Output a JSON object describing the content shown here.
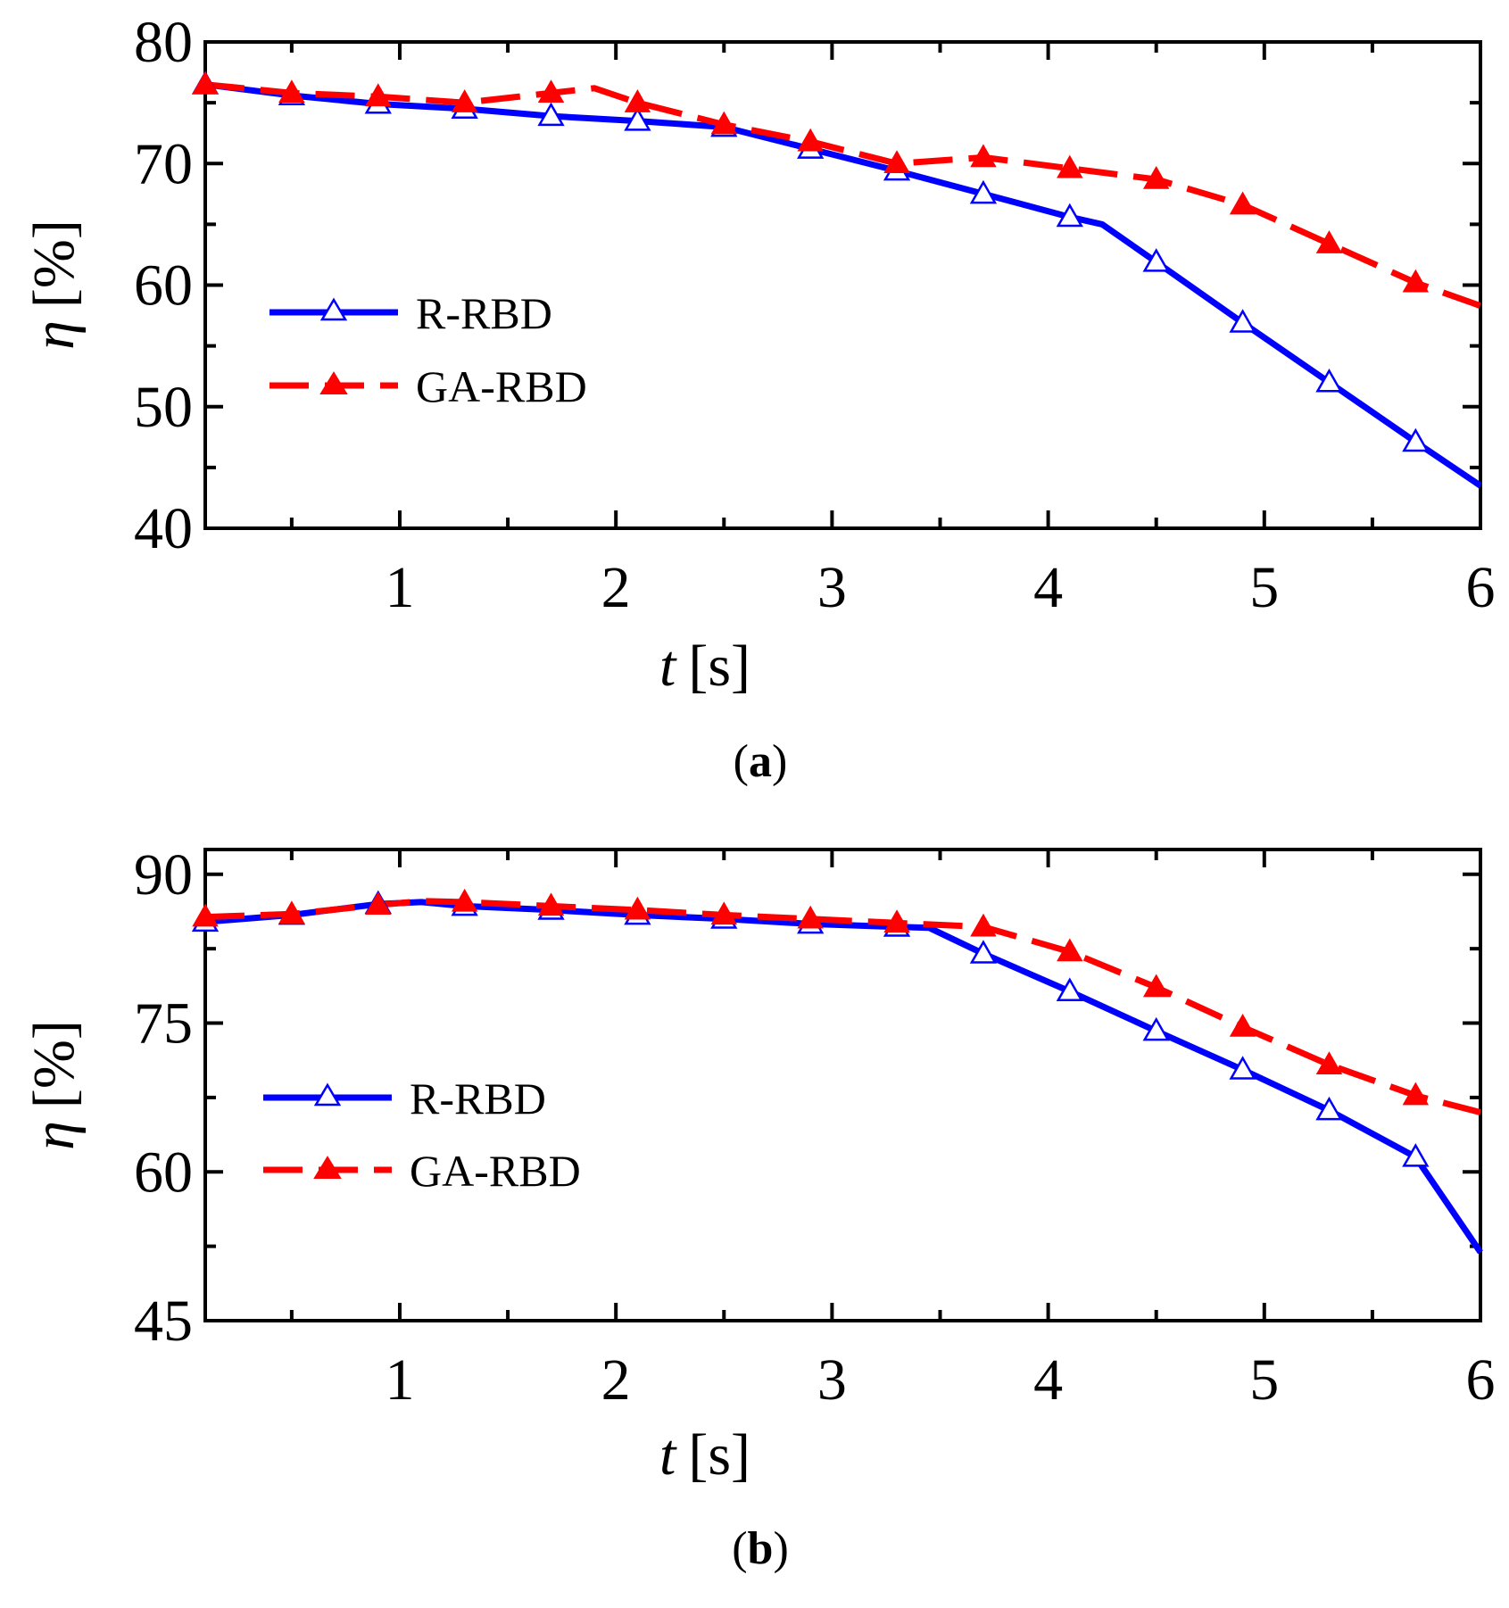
{
  "chart_data": [
    {
      "type": "line",
      "panel_label": "a",
      "xlabel_var": "t",
      "xlabel_unit": "[s]",
      "ylabel_var": "η",
      "ylabel_unit": "[%]",
      "xlim": [
        0.1,
        6
      ],
      "ylim": [
        40,
        80
      ],
      "xticks": [
        1,
        2,
        3,
        4,
        5,
        6
      ],
      "yticks": [
        40,
        50,
        60,
        70,
        80
      ],
      "grid": false,
      "legend_position": "center-left",
      "series": [
        {
          "name": "R-RBD",
          "color": "#0000ff",
          "style": "solid",
          "marker": "open-triangle",
          "x": [
            0.1,
            0.5,
            0.9,
            1.3,
            1.7,
            2.1,
            2.5,
            2.9,
            3.3,
            3.7,
            4.1,
            4.25,
            4.5,
            4.9,
            5.3,
            5.7,
            6.0
          ],
          "y": [
            76.5,
            75.6,
            74.9,
            74.5,
            73.9,
            73.5,
            73.0,
            71.2,
            69.4,
            67.5,
            65.6,
            65.0,
            61.9,
            56.9,
            52.0,
            47.1,
            43.5
          ]
        },
        {
          "name": "GA-RBD",
          "color": "#ff0000",
          "style": "dashed",
          "marker": "filled-triangle",
          "x": [
            0.1,
            0.5,
            0.9,
            1.3,
            1.7,
            1.9,
            2.1,
            2.5,
            2.9,
            3.3,
            3.7,
            4.1,
            4.5,
            4.9,
            5.3,
            5.7,
            6.0
          ],
          "y": [
            76.5,
            75.8,
            75.5,
            75.0,
            75.8,
            76.2,
            75.0,
            73.2,
            71.8,
            70.0,
            70.5,
            69.6,
            68.7,
            66.6,
            63.4,
            60.2,
            58.3
          ]
        }
      ]
    },
    {
      "type": "line",
      "panel_label": "b",
      "xlabel_var": "t",
      "xlabel_unit": "[s]",
      "ylabel_var": "η",
      "ylabel_unit": "[%]",
      "xlim": [
        0.1,
        6
      ],
      "ylim": [
        45,
        92.5
      ],
      "xticks": [
        1,
        2,
        3,
        4,
        5,
        6
      ],
      "yticks": [
        45,
        60,
        75,
        90
      ],
      "yticks_minor": [
        52.5,
        67.5,
        82.5
      ],
      "grid": false,
      "legend_position": "center-left",
      "series": [
        {
          "name": "R-RBD",
          "color": "#0000ff",
          "style": "solid",
          "marker": "open-triangle",
          "x": [
            0.1,
            0.5,
            0.9,
            1.1,
            1.3,
            1.7,
            2.1,
            2.5,
            2.9,
            3.3,
            3.45,
            3.7,
            4.1,
            4.5,
            4.9,
            5.3,
            5.7,
            6.0
          ],
          "y": [
            85.2,
            85.9,
            87.0,
            87.2,
            86.8,
            86.4,
            85.9,
            85.5,
            85.0,
            84.7,
            84.6,
            82.0,
            78.2,
            74.2,
            70.3,
            66.2,
            61.5,
            51.9
          ]
        },
        {
          "name": "GA-RBD",
          "color": "#ff0000",
          "style": "dashed",
          "marker": "filled-triangle",
          "x": [
            0.1,
            0.5,
            0.9,
            1.1,
            1.3,
            1.7,
            2.1,
            2.5,
            2.9,
            3.3,
            3.7,
            4.1,
            4.5,
            4.9,
            5.3,
            5.7,
            6.0
          ],
          "y": [
            85.7,
            86.0,
            86.9,
            87.3,
            87.2,
            86.8,
            86.4,
            85.9,
            85.5,
            85.1,
            84.7,
            82.2,
            78.6,
            74.6,
            70.8,
            67.7,
            66.0
          ]
        }
      ]
    }
  ]
}
